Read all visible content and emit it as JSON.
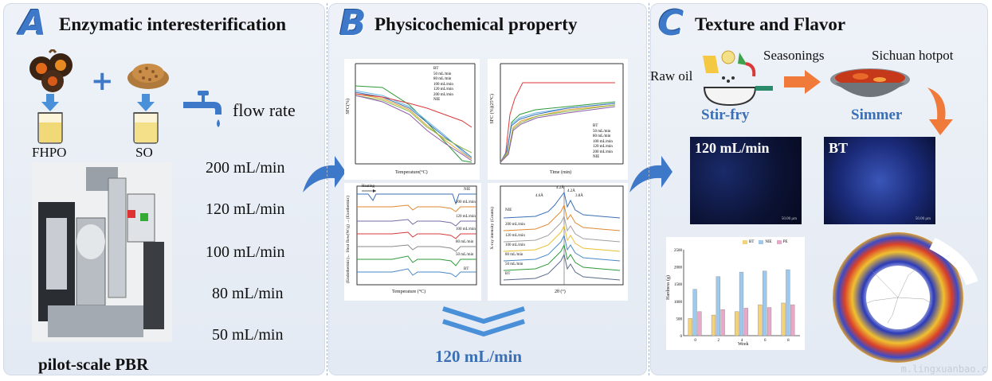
{
  "panel_a": {
    "letter": "A",
    "title": "Enzymatic interesterification",
    "ingredient_1": "FHPO",
    "ingredient_2": "SO",
    "plus": "+",
    "flow_label": "flow rate",
    "flow_rates": [
      "200 mL/min",
      "120 mL/min",
      "100 mL/min",
      "80 mL/min",
      "50 mL/min"
    ],
    "reactor_label": "pilot-scale PBR"
  },
  "panel_b": {
    "letter": "B",
    "title": "Physicochemical property",
    "selected_rate": "120 mL/min",
    "sfc_temp_chart": {
      "ylabel": "SFC(%)",
      "xlabel": "Temperature(°C)",
      "legend": [
        "BT",
        "50 mL/min",
        "80 mL/min",
        "100 mL/min",
        "120 mL/min",
        "200 mL/min",
        "NIE"
      ]
    },
    "sfc_time_chart": {
      "ylabel": "SFC (%)(25°C)",
      "xlabel": "Time (min)",
      "legend": [
        "BT",
        "50 mL/min",
        "80 mL/min",
        "100 mL/min",
        "120 mL/min",
        "200 mL/min",
        "NIE"
      ]
    },
    "dsc_chart": {
      "ylabel": "(Endothermic)← Heat flow(W/g) →(Exothermic)",
      "xlabel": "Temperature (°C)",
      "heating": "Heating",
      "labels": [
        "NIE",
        "200 mL/min",
        "120 mL/min",
        "100 mL/min",
        "80 mL/min",
        "50 mL/min",
        "BT"
      ]
    },
    "xrd_chart": {
      "ylabel": "X-ray intensity (Counts)",
      "xlabel": "2θ (°)",
      "labels": [
        "NIE",
        "200 mL/min",
        "120 mL/min",
        "100 mL/min",
        "80 mL/min",
        "50 mL/min",
        "BT"
      ],
      "peaks": [
        "4.6Å",
        "4.2Å",
        "3.8Å",
        "4.2Å"
      ]
    }
  },
  "panel_c": {
    "letter": "C",
    "title": "Texture and Flavor",
    "raw_oil": "Raw oil",
    "seasonings": "Seasonings",
    "hotpot": "Sichuan hotpot",
    "step_1": "Stir-fry",
    "step_2": "Simmer",
    "micro_1": "120 mL/min",
    "micro_2": "BT",
    "scale": "50.00 μm",
    "bar_chart": {
      "type": "bar",
      "ylabel": "Hardness (g)",
      "xlabel": "Week",
      "legend": [
        "BT",
        "NIE",
        "PE"
      ],
      "categories": [
        "0",
        "2",
        "4",
        "6",
        "8"
      ],
      "ylim": [
        0,
        2500
      ],
      "series": [
        {
          "name": "BT",
          "values": [
            500,
            600,
            700,
            900,
            950
          ]
        },
        {
          "name": "NIE",
          "values": [
            1350,
            1720,
            1850,
            1880,
            1920
          ]
        },
        {
          "name": "PE",
          "values": [
            700,
            760,
            800,
            820,
            900
          ]
        }
      ],
      "colors": [
        "#f4d27a",
        "#9ec9ee",
        "#e8a8c8"
      ]
    }
  },
  "watermark": "m.lingxuanbao.c",
  "colors": {
    "accent": "#3a6fb5",
    "arrow_blue": "#3e78c9",
    "arrow_orange": "#f07a3a"
  }
}
